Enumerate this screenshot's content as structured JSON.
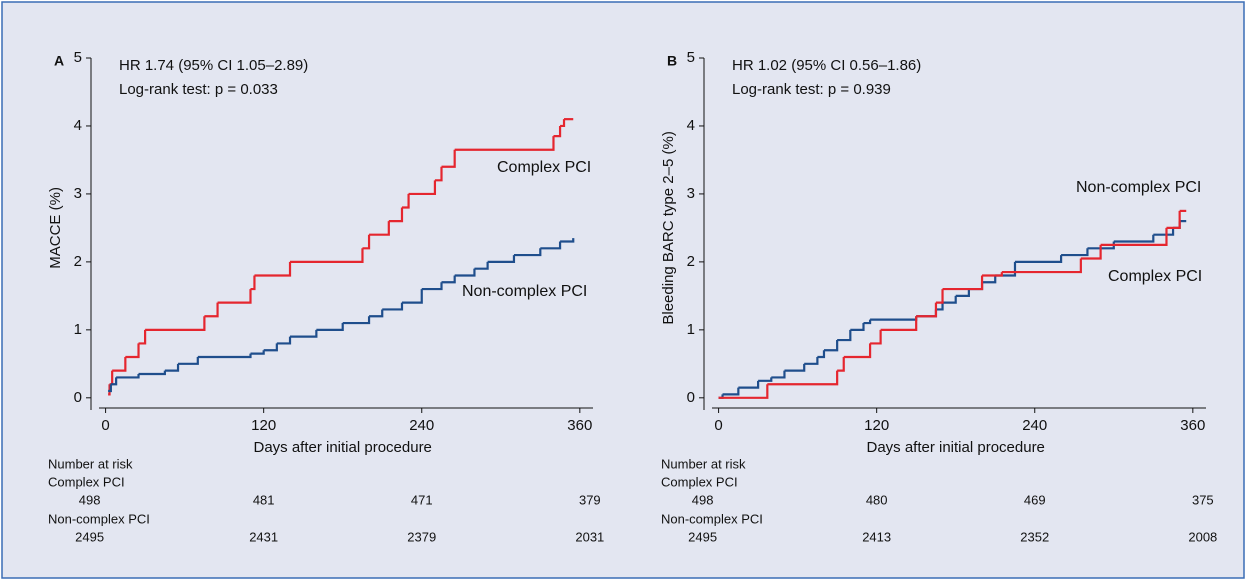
{
  "chart_data": [
    {
      "type": "step",
      "panel": "A",
      "annotations": [
        "HR 1.74 (95% CI 1.05–2.89)",
        "Log-rank test: p = 0.033"
      ],
      "xlabel": "Days after initial procedure",
      "ylabel": "MACCE (%)",
      "xlim": [
        -5,
        370
      ],
      "ylim": [
        -0.15,
        5
      ],
      "xticks": [
        0,
        120,
        240,
        360
      ],
      "yticks": [
        0,
        1,
        2,
        3,
        4,
        5
      ],
      "series": [
        {
          "name": "Complex PCI",
          "color": "#e5262f",
          "x": [
            2,
            3,
            5,
            15,
            25,
            30,
            75,
            85,
            110,
            113,
            140,
            195,
            200,
            215,
            225,
            230,
            250,
            255,
            265,
            340,
            345,
            348,
            355
          ],
          "values": [
            0.05,
            0.2,
            0.4,
            0.6,
            0.8,
            1.0,
            1.2,
            1.4,
            1.6,
            1.8,
            2.0,
            2.2,
            2.4,
            2.6,
            2.8,
            3.0,
            3.2,
            3.4,
            3.65,
            3.85,
            4.0,
            4.1,
            4.1
          ]
        },
        {
          "name": "Non-complex PCI",
          "color": "#1f4e8c",
          "x": [
            2,
            4,
            8,
            25,
            45,
            55,
            70,
            110,
            120,
            130,
            140,
            160,
            180,
            200,
            210,
            225,
            240,
            255,
            265,
            280,
            290,
            310,
            330,
            345,
            355
          ],
          "values": [
            0.1,
            0.2,
            0.3,
            0.35,
            0.4,
            0.5,
            0.6,
            0.65,
            0.7,
            0.8,
            0.9,
            1.0,
            1.1,
            1.2,
            1.3,
            1.4,
            1.6,
            1.7,
            1.8,
            1.9,
            2.0,
            2.1,
            2.2,
            2.3,
            2.35
          ]
        }
      ],
      "risk_table": {
        "title": "Number at risk",
        "rows": [
          {
            "name": "Complex PCI",
            "color": "#e5262f",
            "values": [
              498,
              481,
              471,
              379
            ]
          },
          {
            "name": "Non-complex PCI",
            "color": "#1f4e8c",
            "values": [
              2495,
              2431,
              2379,
              2031
            ]
          }
        ]
      }
    },
    {
      "type": "step",
      "panel": "B",
      "annotations": [
        "HR 1.02 (95% CI 0.56–1.86)",
        "Log-rank test: p = 0.939"
      ],
      "xlabel": "Days after initial procedure",
      "ylabel": "Bleeding BARC type 2–5 (%)",
      "xlim": [
        -5,
        370
      ],
      "ylim": [
        -0.15,
        5
      ],
      "xticks": [
        0,
        120,
        240,
        360
      ],
      "yticks": [
        0,
        1,
        2,
        3,
        4,
        5
      ],
      "series": [
        {
          "name": "Non-complex PCI",
          "color": "#1f4e8c",
          "x": [
            0,
            3,
            15,
            30,
            40,
            50,
            65,
            75,
            80,
            90,
            100,
            110,
            115,
            150,
            165,
            170,
            180,
            190,
            200,
            210,
            225,
            260,
            280,
            300,
            330,
            345,
            350,
            355
          ],
          "values": [
            0,
            0.05,
            0.15,
            0.25,
            0.3,
            0.4,
            0.5,
            0.6,
            0.7,
            0.85,
            1.0,
            1.1,
            1.15,
            1.2,
            1.3,
            1.4,
            1.5,
            1.6,
            1.7,
            1.8,
            2.0,
            2.1,
            2.2,
            2.3,
            2.4,
            2.5,
            2.6,
            2.6
          ]
        },
        {
          "name": "Complex PCI",
          "color": "#e5262f",
          "x": [
            0,
            37,
            90,
            95,
            115,
            123,
            150,
            165,
            170,
            200,
            215,
            275,
            290,
            340,
            350,
            355
          ],
          "values": [
            0,
            0.2,
            0.4,
            0.6,
            0.8,
            1.0,
            1.2,
            1.4,
            1.6,
            1.8,
            1.85,
            2.05,
            2.25,
            2.5,
            2.75,
            2.75
          ]
        }
      ],
      "risk_table": {
        "title": "Number at risk",
        "rows": [
          {
            "name": "Complex PCI",
            "color": "#e5262f",
            "values": [
              498,
              480,
              469,
              375
            ]
          },
          {
            "name": "Non-complex PCI",
            "color": "#1f4e8c",
            "values": [
              2495,
              2413,
              2352,
              2008
            ]
          }
        ]
      }
    }
  ]
}
